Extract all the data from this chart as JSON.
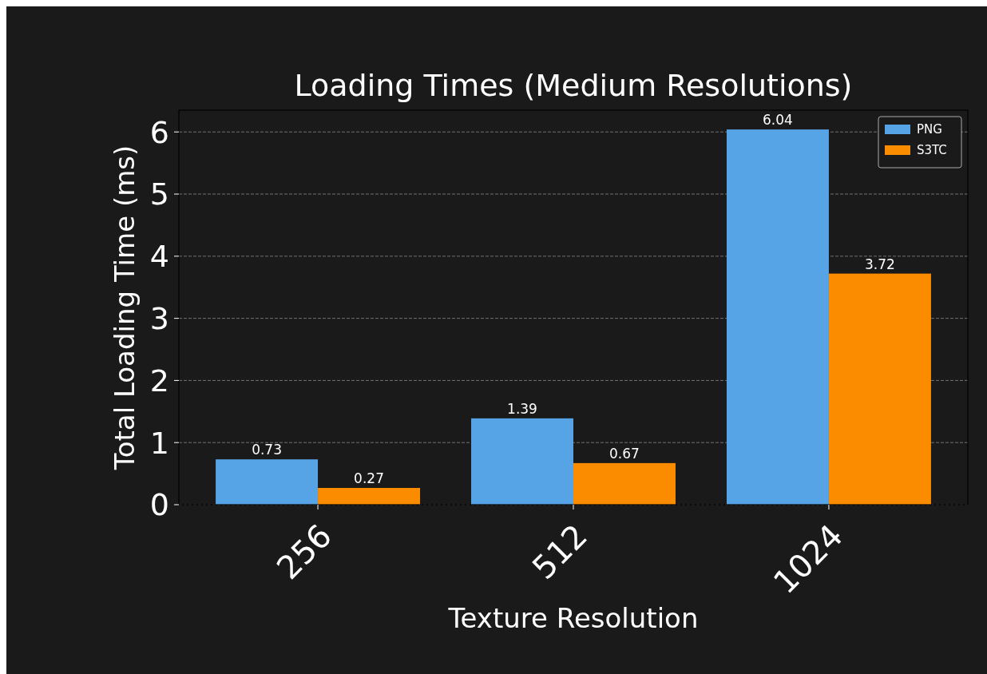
{
  "chart_data": {
    "type": "bar",
    "title": "Loading Times (Medium Resolutions)",
    "xlabel": "Texture Resolution",
    "ylabel": "Total Loading Time (ms)",
    "categories": [
      "256",
      "512",
      "1024"
    ],
    "series": [
      {
        "name": "PNG",
        "color": "#56a3e6",
        "values": [
          0.73,
          1.39,
          6.04
        ]
      },
      {
        "name": "S3TC",
        "color": "#fb8c00",
        "values": [
          0.27,
          0.67,
          3.72
        ]
      }
    ],
    "ylim": [
      0,
      6.35
    ],
    "yticks": [
      0,
      1,
      2,
      3,
      4,
      5,
      6
    ],
    "grid": "y",
    "legend": "top right",
    "data_labels": true
  }
}
